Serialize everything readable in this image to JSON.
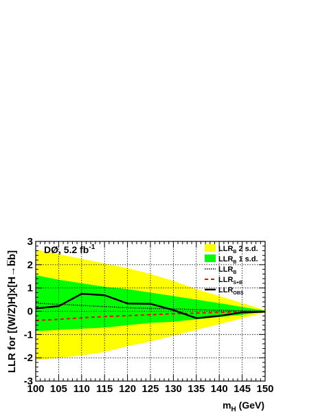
{
  "chart_data": {
    "type": "area",
    "x": [
      100,
      105,
      110,
      115,
      120,
      125,
      130,
      135,
      140,
      145,
      150
    ],
    "xlabel_main": "m",
    "xlabel_sub": "H",
    "xlabel_unit": " (GeV)",
    "ylabel": "LLR for [(W/Z)H]x[H→b̅b]",
    "xlim": [
      100,
      150
    ],
    "ylim": [
      -3,
      3
    ],
    "xticks": [
      "100",
      "105",
      "110",
      "115",
      "120",
      "125",
      "130",
      "135",
      "140",
      "145",
      "150"
    ],
    "yticks": [
      "-3",
      "-2",
      "-1",
      "0",
      "1",
      "2",
      "3"
    ],
    "grid": true,
    "annotation_main": "DØ, 5.2 fb",
    "annotation_sup": "-1",
    "legend_position": "top-right",
    "colors": {
      "band_2sd": "#ffff00",
      "band_1sd": "#00ff00",
      "llr_b": "#000000",
      "llr_sb": "#ff0000",
      "llr_obs": "#000000"
    },
    "band_2sd": {
      "upper": [
        2.65,
        2.45,
        2.25,
        2.05,
        1.85,
        1.6,
        1.3,
        0.95,
        0.65,
        0.35,
        0.05
      ],
      "lower": [
        -2.1,
        -2.0,
        -1.9,
        -1.75,
        -1.5,
        -1.3,
        -1.05,
        -0.8,
        -0.55,
        -0.3,
        -0.05
      ]
    },
    "band_1sd": {
      "upper": [
        1.55,
        1.35,
        1.2,
        1.05,
        0.95,
        0.8,
        0.65,
        0.5,
        0.35,
        0.18,
        0.02
      ],
      "lower": [
        -0.85,
        -0.8,
        -0.75,
        -0.7,
        -0.6,
        -0.5,
        -0.45,
        -0.35,
        -0.25,
        -0.15,
        -0.02
      ]
    },
    "series": [
      {
        "key": "llr_b",
        "values": [
          0.35,
          0.3,
          0.25,
          0.2,
          0.15,
          0.12,
          0.1,
          0.07,
          0.04,
          0.02,
          0.0
        ]
      },
      {
        "key": "llr_sb",
        "values": [
          -0.4,
          -0.35,
          -0.28,
          -0.23,
          -0.19,
          -0.15,
          -0.11,
          -0.08,
          -0.05,
          -0.02,
          0.0
        ]
      },
      {
        "key": "llr_obs",
        "values": [
          0.12,
          0.22,
          0.75,
          0.69,
          0.33,
          0.32,
          0.05,
          -0.3,
          -0.2,
          -0.05,
          -0.02
        ]
      }
    ],
    "legend": [
      {
        "key": "band_2sd",
        "main": "LLR",
        "sub": "B",
        "rest": " 2 s.d."
      },
      {
        "key": "band_1sd",
        "main": "LLR",
        "sub": "B",
        "rest": " 1 s.d."
      },
      {
        "key": "llr_b",
        "main": "LLR",
        "sub": "B",
        "rest": ""
      },
      {
        "key": "llr_sb",
        "main": "LLR",
        "sub": "S+B",
        "rest": ""
      },
      {
        "key": "llr_obs",
        "main": "LLR",
        "sub": "OBS",
        "rest": ""
      }
    ]
  }
}
